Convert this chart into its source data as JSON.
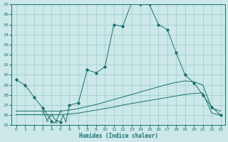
{
  "xlabel": "Humidex (Indice chaleur)",
  "bg_color": "#cce8e8",
  "grid_color": "#99cccc",
  "line_color": "#1a7070",
  "xlim": [
    -0.5,
    23.5
  ],
  "ylim": [
    25,
    37
  ],
  "yticks": [
    25,
    26,
    27,
    28,
    29,
    30,
    31,
    32,
    33,
    34,
    35,
    36,
    37
  ],
  "xticks": [
    0,
    1,
    2,
    3,
    4,
    5,
    6,
    7,
    8,
    9,
    10,
    11,
    12,
    13,
    14,
    15,
    16,
    17,
    18,
    19,
    20,
    21,
    22,
    23
  ],
  "curve1_x": [
    0,
    1,
    2,
    3,
    4,
    4.3,
    4.6,
    5,
    5.3,
    5.6,
    6,
    7,
    8,
    9,
    10,
    11,
    12,
    13,
    14,
    15,
    16,
    17,
    18,
    19,
    20,
    21,
    22,
    23
  ],
  "curve1_y": [
    29.5,
    29.0,
    27.8,
    26.7,
    25.4,
    25.2,
    25.5,
    25.3,
    26.0,
    25.3,
    27.0,
    27.2,
    30.5,
    30.2,
    30.8,
    35.0,
    34.8,
    37.2,
    37.0,
    37.0,
    35.0,
    34.5,
    32.2,
    30.0,
    29.2,
    28.0,
    26.8,
    26.0
  ],
  "markers1_x": [
    0,
    1,
    2,
    3,
    4,
    5,
    6,
    7,
    8,
    9,
    10,
    11,
    12,
    13,
    14,
    15,
    16,
    17,
    18,
    19,
    20,
    21,
    22,
    23
  ],
  "markers1_y": [
    29.5,
    29.0,
    27.8,
    26.7,
    25.4,
    25.3,
    27.0,
    27.2,
    30.5,
    30.2,
    30.8,
    35.0,
    34.8,
    37.2,
    37.0,
    37.0,
    35.0,
    34.5,
    32.2,
    30.0,
    29.2,
    28.0,
    26.8,
    26.0
  ],
  "curve2_x": [
    0,
    1,
    2,
    3,
    4,
    5,
    6,
    7,
    8,
    9,
    10,
    11,
    12,
    13,
    14,
    15,
    16,
    17,
    18,
    19,
    20,
    21,
    22,
    23
  ],
  "curve2_y": [
    26.05,
    26.05,
    26.05,
    26.05,
    26.05,
    26.05,
    26.1,
    26.2,
    26.35,
    26.5,
    26.65,
    26.8,
    27.0,
    27.15,
    27.3,
    27.45,
    27.6,
    27.75,
    27.9,
    28.05,
    28.15,
    28.2,
    26.2,
    26.0
  ],
  "curve3_x": [
    0,
    1,
    2,
    3,
    4,
    5,
    6,
    7,
    8,
    9,
    10,
    11,
    12,
    13,
    14,
    15,
    16,
    17,
    18,
    19,
    20,
    21,
    22,
    23
  ],
  "curve3_y": [
    26.4,
    26.4,
    26.4,
    26.4,
    26.4,
    26.4,
    26.5,
    26.65,
    26.85,
    27.05,
    27.3,
    27.55,
    27.8,
    28.05,
    28.3,
    28.55,
    28.8,
    29.05,
    29.25,
    29.4,
    29.3,
    29.0,
    26.7,
    26.4
  ],
  "tri_x": [
    3,
    3.5,
    4,
    4.5,
    5
  ],
  "tri_y": [
    26.4,
    25.5,
    26.1,
    25.4,
    26.4
  ]
}
